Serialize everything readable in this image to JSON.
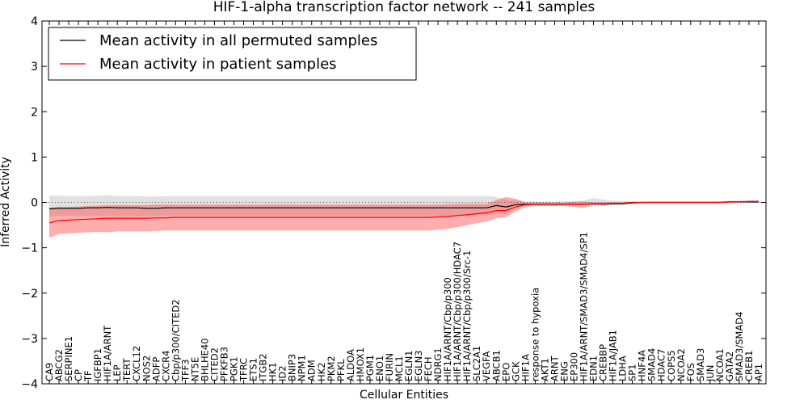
{
  "chart_data": {
    "type": "line",
    "title": "HIF-1-alpha transcription factor network -- 241 samples",
    "xlabel": "Cellular Entities",
    "ylabel": "Inferred Activity",
    "ylim": [
      -4,
      4
    ],
    "yticks": [
      "−4",
      "−3",
      "−2",
      "−1",
      "0",
      "1",
      "2",
      "3",
      "4"
    ],
    "grid": false,
    "legend": {
      "location": "top-left",
      "entries": [
        {
          "label": "Mean activity in all permuted samples",
          "color": "#000000"
        },
        {
          "label": "Mean activity in patient samples",
          "color": "#ff0000"
        }
      ]
    },
    "categories": [
      "CA9",
      "ABCG2",
      "SERPINE1",
      "CP",
      "TF",
      "IGFBP1",
      "HIF1A/ARNT",
      "LEP",
      "TERT",
      "CXCL12",
      "NOS2",
      "ADFP",
      "CXCR4",
      "Cbp/p300/CITED2",
      "TFF3",
      "NT5E",
      "BHLHE40",
      "CITED2",
      "PFKFB3",
      "PGK1",
      "TFRC",
      "ETS1",
      "ITGB2",
      "HK1",
      "ID2",
      "BNIP3",
      "NPM1",
      "ADM",
      "HK2",
      "PKM2",
      "PFKL",
      "ALDOA",
      "HMOX1",
      "PGM1",
      "ENO1",
      "FURIN",
      "MCL1",
      "EGLN1",
      "EGLN3",
      "FECH",
      "NDRG1",
      "HIF1A/ARNT/Cbp/p300",
      "HIF1A/ARNT/Cbp/p300/HDAC7",
      "HIF1A/ARNT/Cbp/p300/Src-1",
      "SLC2A1",
      "VEGFA",
      "ABCB1",
      "EPO",
      "GCK",
      "HIF1A",
      "response to hypoxia",
      "AKT1",
      "ARNT",
      "ENG",
      "EP300",
      "HIF1A/ARNT/SMAD3/SMAD4/SP1",
      "EDN1",
      "CREBBP",
      "HIF1A/JAB1",
      "LDHA",
      "SP1",
      "HNF4A",
      "SMAD4",
      "HDAC7",
      "COPS5",
      "NCOA2",
      "FOS",
      "SMAD3",
      "JUN",
      "NCOA1",
      "GATA2",
      "SMAD3/SMAD4",
      "CREB1",
      "AP1"
    ],
    "series": [
      {
        "name": "Mean activity in all permuted samples",
        "color": "#000000",
        "values": [
          -0.14,
          -0.13,
          -0.13,
          -0.13,
          -0.12,
          -0.12,
          -0.11,
          -0.12,
          -0.12,
          -0.12,
          -0.13,
          -0.13,
          -0.12,
          -0.12,
          -0.12,
          -0.12,
          -0.12,
          -0.12,
          -0.12,
          -0.12,
          -0.12,
          -0.12,
          -0.12,
          -0.12,
          -0.12,
          -0.12,
          -0.12,
          -0.12,
          -0.12,
          -0.12,
          -0.12,
          -0.12,
          -0.12,
          -0.12,
          -0.12,
          -0.12,
          -0.12,
          -0.12,
          -0.12,
          -0.12,
          -0.12,
          -0.12,
          -0.12,
          -0.12,
          -0.12,
          -0.12,
          -0.07,
          -0.1,
          -0.05,
          -0.04,
          -0.04,
          -0.04,
          -0.04,
          -0.04,
          -0.04,
          -0.04,
          -0.03,
          -0.04,
          -0.03,
          -0.03,
          -0.01,
          0.0,
          0.0,
          0.0,
          0.0,
          0.0,
          0.0,
          0.0,
          0.0,
          0.0,
          0.01,
          0.01,
          0.01,
          0.01
        ],
        "band_low": [
          -0.32,
          -0.3,
          -0.3,
          -0.3,
          -0.3,
          -0.3,
          -0.3,
          -0.3,
          -0.3,
          -0.3,
          -0.3,
          -0.3,
          -0.3,
          -0.3,
          -0.3,
          -0.3,
          -0.3,
          -0.3,
          -0.3,
          -0.3,
          -0.3,
          -0.3,
          -0.3,
          -0.3,
          -0.3,
          -0.3,
          -0.3,
          -0.3,
          -0.3,
          -0.3,
          -0.3,
          -0.3,
          -0.3,
          -0.3,
          -0.3,
          -0.3,
          -0.3,
          -0.3,
          -0.3,
          -0.3,
          -0.3,
          -0.3,
          -0.3,
          -0.3,
          -0.3,
          -0.3,
          -0.25,
          -0.26,
          -0.1,
          -0.08,
          -0.07,
          -0.07,
          -0.07,
          -0.07,
          -0.07,
          -0.07,
          -0.06,
          -0.08,
          -0.06,
          -0.06,
          -0.02,
          -0.01,
          -0.01,
          -0.01,
          -0.01,
          -0.01,
          -0.01,
          -0.01,
          -0.01,
          -0.01,
          -0.01,
          -0.01,
          -0.01,
          -0.01
        ],
        "band_high": [
          0.15,
          0.15,
          0.14,
          0.14,
          0.14,
          0.15,
          0.16,
          0.14,
          0.14,
          0.14,
          0.13,
          0.13,
          0.14,
          0.14,
          0.14,
          0.14,
          0.14,
          0.14,
          0.14,
          0.14,
          0.14,
          0.14,
          0.14,
          0.14,
          0.14,
          0.14,
          0.14,
          0.14,
          0.14,
          0.14,
          0.14,
          0.14,
          0.14,
          0.14,
          0.14,
          0.14,
          0.14,
          0.14,
          0.14,
          0.14,
          0.14,
          0.14,
          0.14,
          0.14,
          0.14,
          0.14,
          0.12,
          0.06,
          0.04,
          0.02,
          0.02,
          0.02,
          0.02,
          0.02,
          0.03,
          0.04,
          0.1,
          0.06,
          0.04,
          0.03,
          0.02,
          0.02,
          0.02,
          0.02,
          0.02,
          0.02,
          0.02,
          0.02,
          0.02,
          0.02,
          0.02,
          0.03,
          0.04,
          0.05
        ]
      },
      {
        "name": "Mean activity in patient samples",
        "color": "#ff0000",
        "values": [
          -0.45,
          -0.4,
          -0.39,
          -0.38,
          -0.37,
          -0.36,
          -0.35,
          -0.35,
          -0.35,
          -0.35,
          -0.35,
          -0.34,
          -0.34,
          -0.33,
          -0.33,
          -0.33,
          -0.33,
          -0.33,
          -0.33,
          -0.33,
          -0.33,
          -0.33,
          -0.33,
          -0.33,
          -0.33,
          -0.33,
          -0.33,
          -0.33,
          -0.33,
          -0.33,
          -0.33,
          -0.33,
          -0.33,
          -0.33,
          -0.33,
          -0.33,
          -0.33,
          -0.33,
          -0.33,
          -0.33,
          -0.32,
          -0.31,
          -0.29,
          -0.27,
          -0.25,
          -0.23,
          -0.18,
          -0.18,
          -0.1,
          -0.05,
          -0.04,
          -0.04,
          -0.04,
          -0.04,
          -0.04,
          -0.04,
          -0.03,
          -0.03,
          -0.02,
          -0.02,
          0.0,
          0.0,
          0.0,
          0.0,
          0.0,
          0.0,
          0.0,
          0.0,
          0.0,
          0.0,
          0.01,
          0.01,
          0.02,
          0.02
        ],
        "band_low": [
          -0.78,
          -0.7,
          -0.68,
          -0.67,
          -0.66,
          -0.65,
          -0.66,
          -0.64,
          -0.64,
          -0.64,
          -0.64,
          -0.63,
          -0.62,
          -0.62,
          -0.62,
          -0.62,
          -0.62,
          -0.62,
          -0.62,
          -0.62,
          -0.62,
          -0.62,
          -0.62,
          -0.62,
          -0.62,
          -0.62,
          -0.62,
          -0.62,
          -0.62,
          -0.62,
          -0.62,
          -0.62,
          -0.62,
          -0.62,
          -0.62,
          -0.62,
          -0.62,
          -0.62,
          -0.62,
          -0.62,
          -0.6,
          -0.58,
          -0.55,
          -0.5,
          -0.46,
          -0.42,
          -0.35,
          -0.32,
          -0.2,
          -0.1,
          -0.08,
          -0.08,
          -0.08,
          -0.08,
          -0.1,
          -0.12,
          -0.06,
          -0.06,
          -0.04,
          -0.03,
          -0.01,
          -0.01,
          -0.01,
          -0.01,
          -0.01,
          -0.01,
          -0.01,
          -0.01,
          -0.01,
          -0.01,
          -0.01,
          0.0,
          0.0,
          0.0
        ],
        "band_high": [
          -0.12,
          -0.1,
          -0.1,
          -0.09,
          -0.08,
          -0.07,
          -0.06,
          -0.06,
          -0.06,
          -0.06,
          -0.06,
          -0.05,
          -0.05,
          -0.05,
          -0.05,
          -0.05,
          -0.05,
          -0.05,
          -0.05,
          -0.05,
          -0.05,
          -0.05,
          -0.05,
          -0.05,
          -0.05,
          -0.05,
          -0.05,
          -0.05,
          -0.05,
          -0.05,
          -0.05,
          -0.05,
          -0.05,
          -0.05,
          -0.05,
          -0.05,
          -0.05,
          -0.05,
          -0.05,
          -0.05,
          -0.05,
          -0.04,
          -0.03,
          -0.03,
          -0.03,
          -0.03,
          0.05,
          0.12,
          0.08,
          0.0,
          0.0,
          0.0,
          0.0,
          0.0,
          0.01,
          0.02,
          0.0,
          0.0,
          0.0,
          0.0,
          0.01,
          0.01,
          0.01,
          0.01,
          0.01,
          0.01,
          0.01,
          0.01,
          0.01,
          0.02,
          0.03,
          0.03,
          0.04,
          0.04
        ]
      }
    ],
    "reference_line": {
      "y": 0,
      "style": "dotted"
    }
  }
}
